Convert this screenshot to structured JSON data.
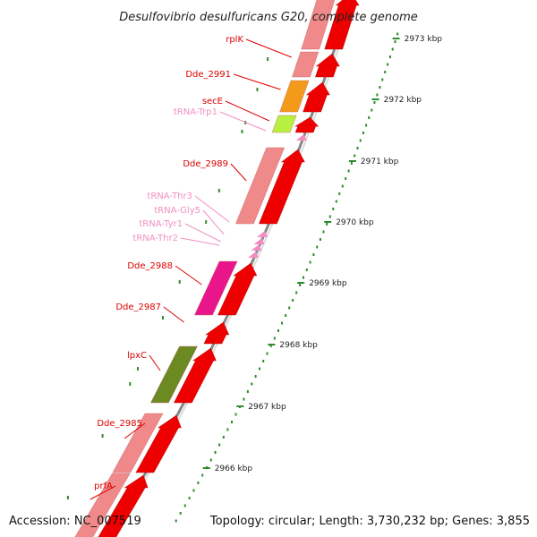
{
  "title": "Desulfovibrio desulfuricans G20, complete genome",
  "footer": {
    "accession": "Accession: NC_007519",
    "topology": "Topology: circular; Length: 3,730,232 bp; Genes: 3,855"
  },
  "kbp_labels": [
    "2973 kbp",
    "2972 kbp",
    "2971 kbp",
    "2970 kbp",
    "2969 kbp",
    "2968 kbp",
    "2967 kbp",
    "2966 kbp"
  ],
  "gene_labels": [
    {
      "text": "rplK",
      "color": "#dd0000"
    },
    {
      "text": "Dde_2991",
      "color": "#dd0000"
    },
    {
      "text": "secE",
      "color": "#dd0000"
    },
    {
      "text": "tRNA-Trp1",
      "color": "#f08fc0"
    },
    {
      "text": "Dde_2989",
      "color": "#dd0000"
    },
    {
      "text": "tRNA-Thr3",
      "color": "#f08fc0"
    },
    {
      "text": "tRNA-Gly5",
      "color": "#f08fc0"
    },
    {
      "text": "tRNA-Tyr1",
      "color": "#f08fc0"
    },
    {
      "text": "tRNA-Thr2",
      "color": "#f08fc0"
    },
    {
      "text": "Dde_2988",
      "color": "#dd0000"
    },
    {
      "text": "Dde_2987",
      "color": "#dd0000"
    },
    {
      "text": "lpxC",
      "color": "#dd0000"
    },
    {
      "text": "Dde_2985",
      "color": "#dd0000"
    },
    {
      "text": "prfA",
      "color": "#dd0000"
    }
  ],
  "colors": {
    "gene_arrow": "#ee0000",
    "cog_default": "#f08a8a",
    "cog_orange": "#f39a1a",
    "cog_lime": "#b8f040",
    "cog_magenta": "#e8168a",
    "cog_olive": "#6b8a22",
    "trna": "#f48cc4",
    "backbone": "#888888",
    "ticks": "#2e8b2e",
    "label_red": "#dd0000"
  }
}
